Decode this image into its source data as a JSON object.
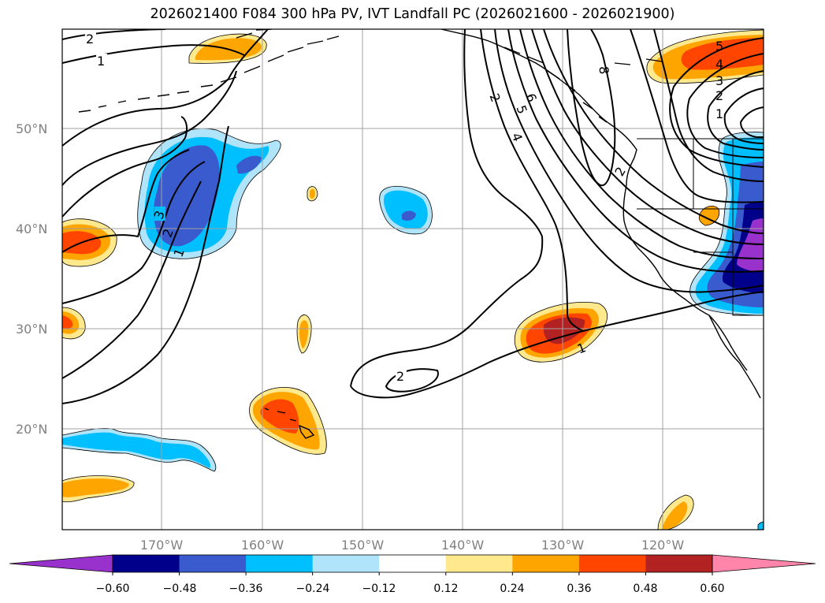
{
  "title": "2026021400 F084 300 hPa PV, IVT Landfall PC (2026021600 - 2026021900)",
  "map": {
    "lat_labels": [
      "50°N",
      "40°N",
      "30°N",
      "20°N"
    ],
    "lon_labels": [
      "170°W",
      "160°W",
      "150°W",
      "140°W",
      "130°W",
      "120°W"
    ],
    "contour_labels": [
      "2",
      "1",
      "3",
      "2",
      "1",
      "2",
      "6",
      "5",
      "4",
      "8",
      "2",
      "5",
      "4",
      "3",
      "2",
      "1",
      "2",
      "1"
    ]
  },
  "colorbar": {
    "ticks": [
      "−0.60",
      "−0.48",
      "−0.36",
      "−0.24",
      "−0.12",
      "0.12",
      "0.24",
      "0.36",
      "0.48",
      "0.60"
    ],
    "colors": [
      "#9932cc",
      "#00008b",
      "#3a5bcd",
      "#00bfff",
      "#afe4fb",
      "#ffffff",
      "#ffe98c",
      "#ffa500",
      "#ff4500",
      "#b22222",
      "#ff85aa"
    ]
  }
}
